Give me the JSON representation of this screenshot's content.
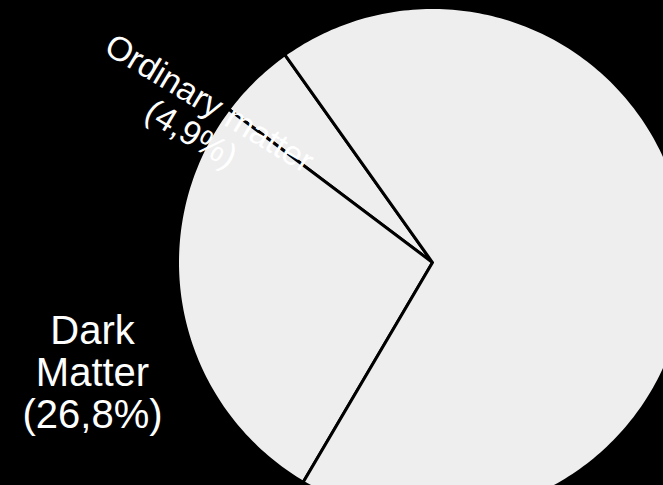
{
  "chart_data": {
    "type": "pie",
    "categories": [
      "Ordinary matter",
      "Dark Matter",
      null
    ],
    "values": [
      4.9,
      26.8,
      68.3
    ],
    "value_labels": [
      "(4,9%)",
      "(26,8%)",
      null
    ],
    "colors": [
      "#eeeeee",
      "#eeeeee",
      "#eeeeee"
    ],
    "data_labels": true
  }
}
